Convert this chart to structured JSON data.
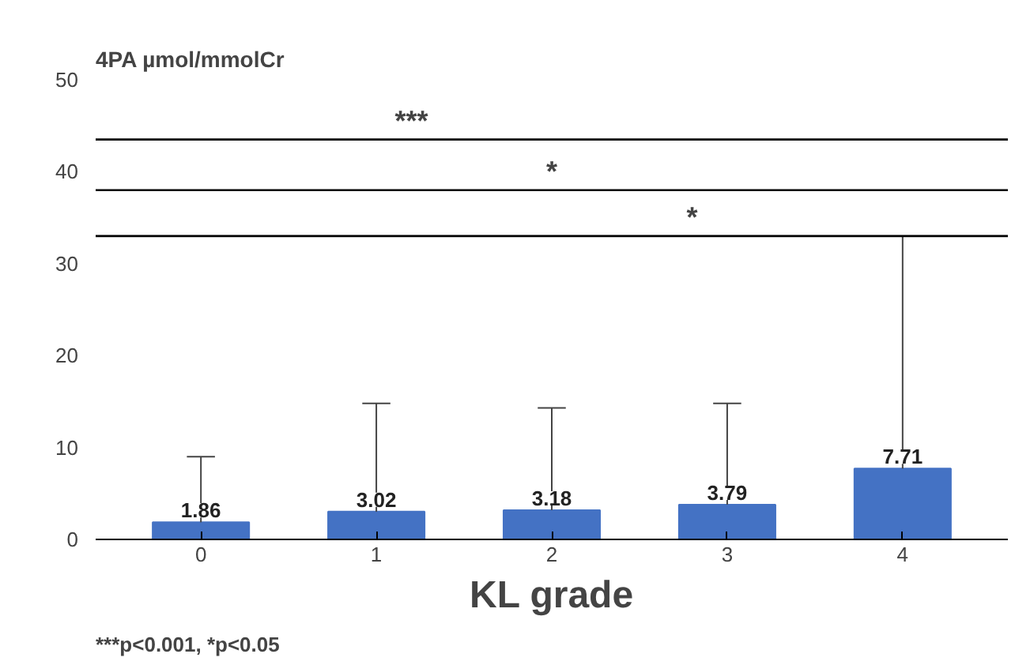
{
  "chart_data": {
    "type": "bar",
    "ylabel": "4PA µmol/mmolCr",
    "xlabel": "KL grade",
    "categories": [
      "0",
      "1",
      "2",
      "3",
      "4"
    ],
    "values": [
      1.86,
      3.02,
      3.18,
      3.79,
      7.71
    ],
    "color": "#4472c4",
    "errors": [
      [
        1.86,
        9
      ],
      [
        3.02,
        14.8
      ],
      [
        3.18,
        14.3
      ],
      [
        3.79,
        14.8
      ],
      [
        7.71,
        33
      ]
    ],
    "data_labels": true,
    "ylim": [
      0,
      50
    ],
    "yticks": [
      0,
      10,
      20,
      30,
      40,
      50
    ],
    "grid": false,
    "ref_lines": [
      {
        "axis": "y",
        "value": 43.5,
        "label": "***",
        "color": "#000000"
      },
      {
        "axis": "y",
        "value": 38,
        "label": "*",
        "color": "#000000"
      },
      {
        "axis": "y",
        "value": 33,
        "label": "*",
        "color": "#000000"
      }
    ],
    "annotations": [
      "***p<0.001, *p<0.05"
    ]
  }
}
